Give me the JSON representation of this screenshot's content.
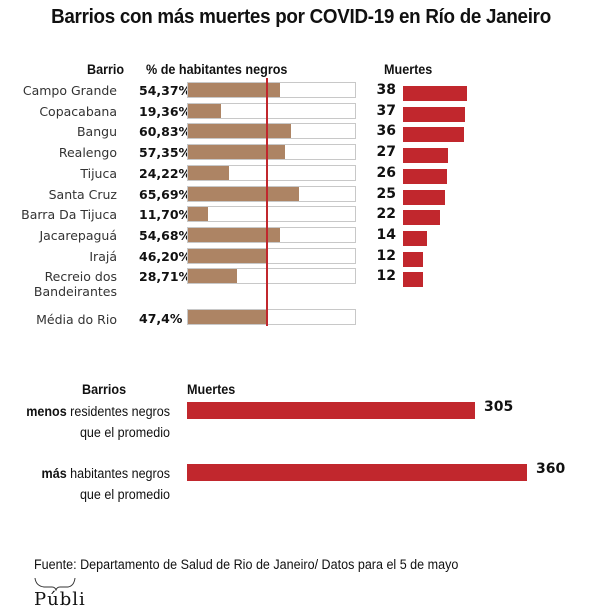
{
  "chart_data": [
    {
      "type": "bar",
      "orientation": "horizontal",
      "title": "Barrios con más muertes por COVID-19 en Río de Janeiro",
      "column_headers": {
        "barrio": "Barrio",
        "pct": "% de habitantes negros",
        "deaths": "Muertes"
      },
      "xlim_pct": [
        0,
        100
      ],
      "reference_line": {
        "label": "Média do Rio",
        "value": 47.4,
        "display": "47,4%",
        "color": "#c1272d"
      },
      "rows": [
        {
          "name": "Campo Grande",
          "pct": 54.37,
          "pct_label": "54,37%",
          "deaths": 38
        },
        {
          "name": "Copacabana",
          "pct": 19.36,
          "pct_label": "19,36%",
          "deaths": 37
        },
        {
          "name": "Bangu",
          "pct": 60.83,
          "pct_label": "60,83%",
          "deaths": 36
        },
        {
          "name": "Realengo",
          "pct": 57.35,
          "pct_label": "57,35%",
          "deaths": 27
        },
        {
          "name": "Tijuca",
          "pct": 24.22,
          "pct_label": "24,22%",
          "deaths": 26
        },
        {
          "name": "Santa Cruz",
          "pct": 65.69,
          "pct_label": "65,69%",
          "deaths": 25
        },
        {
          "name": "Barra Da Tijuca",
          "pct": 11.7,
          "pct_label": "11,70%",
          "deaths": 22
        },
        {
          "name": "Jacarepaguá",
          "pct": 54.68,
          "pct_label": "54,68%",
          "deaths": 14
        },
        {
          "name": "Irajá",
          "pct": 46.2,
          "pct_label": "46,20%",
          "deaths": 12
        },
        {
          "name": "Recreio dos Bandeirantes",
          "name_lines": [
            "Recreio dos",
            "Bandeirantes"
          ],
          "pct": 28.71,
          "pct_label": "28,71%",
          "deaths": 12
        }
      ],
      "colors": {
        "pct_bar": "#ad8464",
        "deaths_bar": "#c1272d",
        "track_border": "#c8c8c8"
      }
    },
    {
      "type": "bar",
      "orientation": "horizontal",
      "column_headers": {
        "group": "Barrios",
        "deaths": "Muertes"
      },
      "categories": [
        {
          "bold": "menos",
          "rest": " residentes negros",
          "line2": "que el promedio"
        },
        {
          "bold": "más",
          "rest": " habitantes negros",
          "line2": "que el promedio"
        }
      ],
      "values": [
        305,
        360
      ],
      "color": "#c1272d"
    }
  ],
  "source": "Fuente: Departamento de Salud de Rio de Janeiro/ Datos para el 5 de mayo",
  "logo": {
    "name": "Público",
    "visible_text": "Públi"
  }
}
